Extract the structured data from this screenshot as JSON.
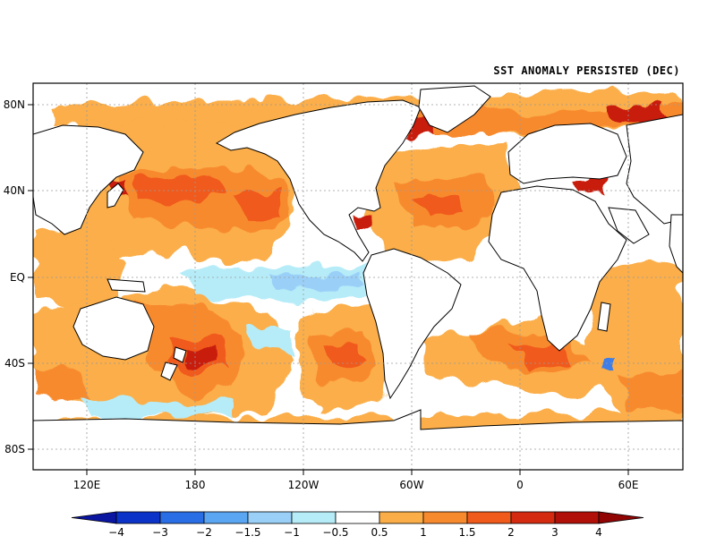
{
  "title": "SST ANOMALY PERSISTED (DEC)",
  "lat_labels": [
    "80N",
    "40N",
    "EQ",
    "40S",
    "80S"
  ],
  "lon_labels": [
    "120E",
    "180",
    "120W",
    "60W",
    "0",
    "60E"
  ],
  "colorbar": {
    "labels": [
      "−4",
      "−3",
      "−2",
      "−1.5",
      "−1",
      "−0.5",
      "0.5",
      "1",
      "1.5",
      "2",
      "3",
      "4"
    ],
    "colors": [
      "#0a15a0",
      "#0c33c8",
      "#2a6ee6",
      "#5aa6f2",
      "#9ad0f8",
      "#b6ecf8",
      "#ffffff",
      "#fbae48",
      "#f88a2e",
      "#f05a1a",
      "#d42a10",
      "#b01008",
      "#900404"
    ]
  },
  "colors": {
    "ocean_zero": "#ffffff",
    "warm_light": "#fbae48",
    "warm_mid": "#f88a2e",
    "warm_strong": "#f05a1a",
    "hot": "#c81e0c",
    "cool_light": "#b6ecf8",
    "cool_mid": "#9ad0f8",
    "cool_strong": "#3c7ee8",
    "land": "#ffffff",
    "coast": "#000000"
  }
}
